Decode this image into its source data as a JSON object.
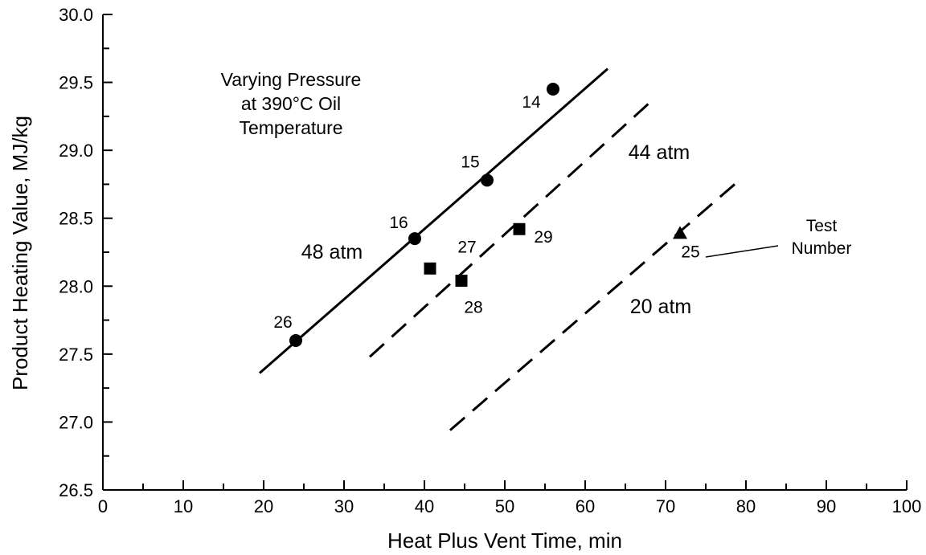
{
  "chart_data": {
    "type": "scatter",
    "title": "",
    "xlabel": "Heat Plus Vent Time, min",
    "ylabel": "Product Heating Value, MJ/kg",
    "xlim": [
      0,
      100
    ],
    "ylim": [
      26.5,
      30.0
    ],
    "x_ticks": [
      0,
      10,
      20,
      30,
      40,
      50,
      60,
      70,
      80,
      90,
      100
    ],
    "y_ticks": [
      "26.5",
      "27.0",
      "27.5",
      "28.0",
      "28.5",
      "29.0",
      "29.5",
      "30.0"
    ],
    "grid": false,
    "annotation_lines": [
      "Varying Pressure",
      "at 390°C Oil",
      "Temperature"
    ],
    "test_number_callout": {
      "lines": [
        "Test",
        "Number"
      ]
    },
    "series": [
      {
        "name": "48 atm",
        "marker": "circle",
        "line_style": "solid",
        "fit_line": {
          "x": [
            19.5,
            62.8
          ],
          "y": [
            27.36,
            29.6
          ]
        },
        "points": [
          {
            "x": 56,
            "y": 29.45,
            "label": "14"
          },
          {
            "x": 47.8,
            "y": 28.78,
            "label": "15"
          },
          {
            "x": 38.8,
            "y": 28.35,
            "label": "16"
          },
          {
            "x": 24,
            "y": 27.6,
            "label": "26"
          }
        ]
      },
      {
        "name": "44 atm",
        "marker": "square",
        "line_style": "dashed",
        "fit_line": {
          "x": [
            33.2,
            68.2
          ],
          "y": [
            27.48,
            29.36
          ]
        },
        "points": [
          {
            "x": 40.7,
            "y": 28.13,
            "label": "27"
          },
          {
            "x": 44.6,
            "y": 28.04,
            "label": "28"
          },
          {
            "x": 51.8,
            "y": 28.42,
            "label": "29"
          }
        ]
      },
      {
        "name": "20 atm",
        "marker": "triangle",
        "line_style": "dashed",
        "fit_line": {
          "x": [
            43.2,
            78.6
          ],
          "y": [
            26.94,
            28.75
          ]
        },
        "points": [
          {
            "x": 71.8,
            "y": 28.39,
            "label": "25"
          }
        ]
      }
    ]
  }
}
